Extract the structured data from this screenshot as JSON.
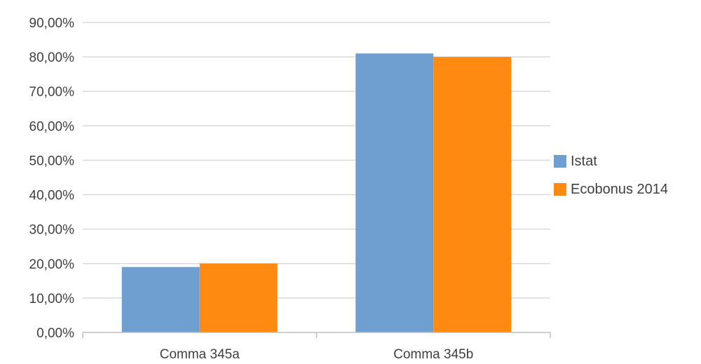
{
  "chart_data": {
    "type": "bar",
    "categories": [
      "Comma 345a",
      "Comma 345b"
    ],
    "series": [
      {
        "name": "Istat",
        "values": [
          19,
          81
        ],
        "color": "#6f9fd0"
      },
      {
        "name": "Ecobonus 2014",
        "values": [
          20,
          80
        ],
        "color": "#ff8a11"
      }
    ],
    "y_ticks": [
      "0,00%",
      "10,00%",
      "20,00%",
      "30,00%",
      "40,00%",
      "50,00%",
      "60,00%",
      "70,00%",
      "80,00%",
      "90,00%"
    ],
    "ylim": [
      0,
      90
    ],
    "grid": true,
    "legend_position": "right"
  }
}
